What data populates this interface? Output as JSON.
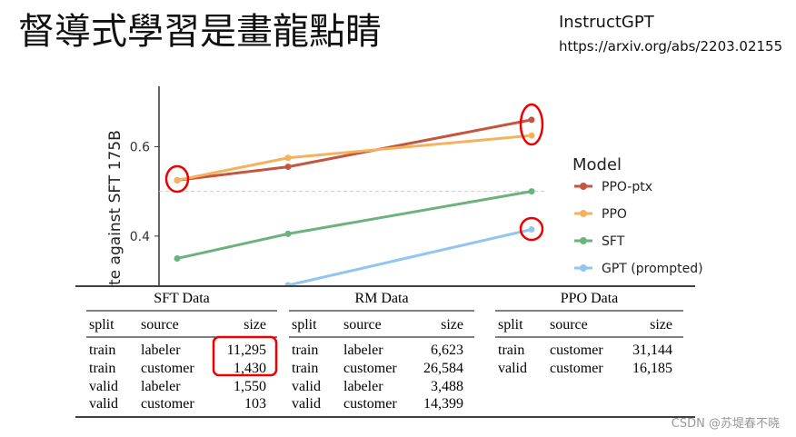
{
  "header": {
    "title": "督導式學習是畫龍點睛",
    "source_name": "InstructGPT",
    "source_url": "https://arxiv.org/abs/2203.02155"
  },
  "chart_data": {
    "type": "line",
    "ylabel": "te against SFT 175B",
    "categories": [
      null,
      null,
      null
    ],
    "series": [
      {
        "name": "PPO-ptx",
        "color": "#c4553f",
        "values": [
          0.525,
          0.555,
          0.66
        ]
      },
      {
        "name": "PPO",
        "color": "#f2b25e",
        "values": [
          0.525,
          0.575,
          0.625
        ]
      },
      {
        "name": "SFT",
        "color": "#6db27e",
        "values": [
          0.35,
          0.405,
          0.5
        ]
      },
      {
        "name": "GPT (prompted)",
        "color": "#92c5f2",
        "values": [
          null,
          0.29,
          0.415
        ]
      }
    ],
    "ylim": [
      0.29,
      0.735
    ],
    "yticks": [
      0.4,
      0.6
    ],
    "ref_line": 0.5,
    "legend_title": "Model",
    "legend": "right"
  },
  "table": {
    "groups": [
      {
        "title": "SFT Data",
        "columns": [
          "split",
          "source",
          "size"
        ],
        "rows": [
          [
            "train",
            "labeler",
            "11,295"
          ],
          [
            "train",
            "customer",
            "1,430"
          ],
          [
            "valid",
            "labeler",
            "1,550"
          ],
          [
            "valid",
            "customer",
            "103"
          ]
        ]
      },
      {
        "title": "RM Data",
        "columns": [
          "split",
          "source",
          "size"
        ],
        "rows": [
          [
            "train",
            "labeler",
            "6,623"
          ],
          [
            "train",
            "customer",
            "26,584"
          ],
          [
            "valid",
            "labeler",
            "3,488"
          ],
          [
            "valid",
            "customer",
            "14,399"
          ]
        ]
      },
      {
        "title": "PPO Data",
        "columns": [
          "split",
          "source",
          "size"
        ],
        "rows": [
          [
            "train",
            "customer",
            "31,144"
          ],
          [
            "valid",
            "customer",
            "16,185"
          ]
        ]
      }
    ]
  },
  "watermark": "CSDN @苏堤春不晓"
}
